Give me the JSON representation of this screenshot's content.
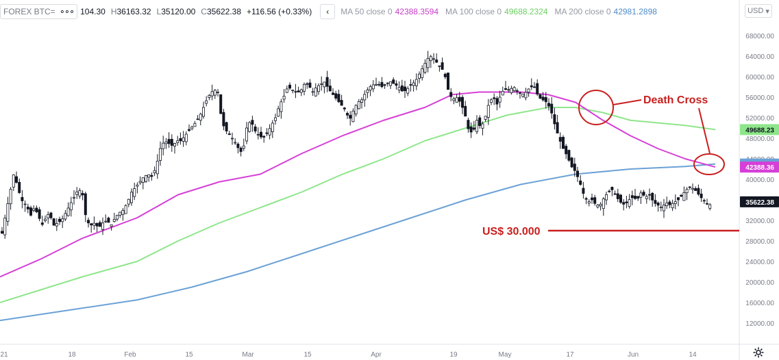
{
  "legend": {
    "symbol": "FOREX BTC=",
    "more_icon": "more-dots-icon",
    "open_label": "",
    "open": "104.30",
    "high_label": "H",
    "high": "36163.32",
    "low_label": "L",
    "low": "35120.00",
    "close_label": "C",
    "close": "35622.38",
    "change": "+116.56 (+0.33%)",
    "collapse_icon": "chevron-left-icon",
    "ma50_label": "MA 50 close 0",
    "ma50_value": "42388.3594",
    "ma100_label": "MA 100 close 0",
    "ma100_value": "49688.2324",
    "ma200_label": "MA 200 close 0",
    "ma200_value": "42981.2898"
  },
  "currency": "USD",
  "settings_icon": "gear-icon",
  "colors": {
    "up": "#ffffff",
    "down": "#131722",
    "ma50": "#d63fd8",
    "ma100": "#8ee68a",
    "ma200": "#6aa1d6",
    "annotation": "#c91e1e",
    "axis_text": "#787b86"
  },
  "chart_data": {
    "type": "candlestick",
    "y_axis": {
      "min": 8000,
      "max": 70000,
      "ticks": [
        "68000.00",
        "64000.00",
        "60000.00",
        "56000.00",
        "52000.00",
        "48000.00",
        "44000.00",
        "40000.00",
        "36000.00",
        "32000.00",
        "28000.00",
        "24000.00",
        "20000.00",
        "16000.00",
        "12000.00"
      ],
      "tick_values": [
        68000,
        64000,
        60000,
        56000,
        52000,
        48000,
        44000,
        40000,
        36000,
        32000,
        28000,
        24000,
        20000,
        16000,
        12000
      ]
    },
    "x_axis": {
      "labels": [
        "21",
        "18",
        "Feb",
        "15",
        "Mar",
        "15",
        "Apr",
        "19",
        "May",
        "17",
        "Jun",
        "14"
      ]
    },
    "price_labels": [
      {
        "text": "49688.23",
        "value": 49688.23,
        "series": "ma100"
      },
      {
        "text": "42981.29",
        "value": 42981.29,
        "series": "ma200"
      },
      {
        "text": "42388.36",
        "value": 42388.36,
        "series": "ma50"
      },
      {
        "text": "35622.38",
        "value": 35622.38,
        "series": "price"
      }
    ],
    "price_anchors": [
      [
        0,
        30000
      ],
      [
        5,
        29500
      ],
      [
        10,
        33000
      ],
      [
        16,
        37000
      ],
      [
        22,
        41000
      ],
      [
        27,
        39000
      ],
      [
        33,
        36000
      ],
      [
        40,
        35000
      ],
      [
        47,
        33000
      ],
      [
        52,
        34500
      ],
      [
        58,
        33000
      ],
      [
        63,
        31000
      ],
      [
        69,
        32500
      ],
      [
        74,
        33500
      ],
      [
        80,
        31000
      ],
      [
        86,
        31500
      ],
      [
        92,
        32000
      ],
      [
        98,
        33500
      ],
      [
        104,
        35000
      ],
      [
        110,
        36500
      ],
      [
        116,
        38000
      ],
      [
        122,
        37500
      ],
      [
        128,
        32000
      ],
      [
        134,
        31000
      ],
      [
        140,
        31500
      ],
      [
        146,
        30500
      ],
      [
        152,
        31500
      ],
      [
        158,
        32000
      ],
      [
        164,
        31000
      ],
      [
        170,
        32500
      ],
      [
        176,
        33500
      ],
      [
        182,
        34000
      ],
      [
        188,
        35500
      ],
      [
        194,
        37500
      ],
      [
        200,
        38500
      ],
      [
        206,
        39500
      ],
      [
        212,
        40500
      ],
      [
        218,
        41000
      ],
      [
        224,
        40500
      ],
      [
        230,
        42500
      ],
      [
        236,
        46000
      ],
      [
        242,
        47500
      ],
      [
        248,
        47000
      ],
      [
        254,
        46500
      ],
      [
        260,
        47500
      ],
      [
        266,
        47500
      ],
      [
        272,
        48500
      ],
      [
        278,
        49500
      ],
      [
        284,
        50500
      ],
      [
        290,
        51500
      ],
      [
        296,
        53000
      ],
      [
        302,
        55000
      ],
      [
        308,
        56500
      ],
      [
        314,
        57500
      ],
      [
        320,
        57000
      ],
      [
        326,
        51000
      ],
      [
        332,
        49500
      ],
      [
        338,
        48500
      ],
      [
        344,
        47500
      ],
      [
        350,
        46000
      ],
      [
        356,
        45000
      ],
      [
        362,
        50000
      ],
      [
        368,
        51500
      ],
      [
        374,
        49500
      ],
      [
        380,
        48500
      ],
      [
        386,
        48000
      ],
      [
        392,
        49000
      ],
      [
        398,
        50500
      ],
      [
        404,
        52000
      ],
      [
        410,
        54500
      ],
      [
        416,
        56000
      ],
      [
        422,
        58000
      ],
      [
        428,
        57500
      ],
      [
        434,
        57000
      ],
      [
        440,
        57000
      ],
      [
        446,
        58500
      ],
      [
        452,
        58500
      ],
      [
        458,
        57000
      ],
      [
        464,
        58000
      ],
      [
        470,
        58500
      ],
      [
        476,
        59000
      ],
      [
        482,
        57500
      ],
      [
        488,
        56500
      ],
      [
        494,
        55500
      ],
      [
        500,
        54500
      ],
      [
        506,
        53500
      ],
      [
        512,
        51500
      ],
      [
        518,
        53500
      ],
      [
        524,
        55000
      ],
      [
        530,
        55500
      ],
      [
        536,
        57000
      ],
      [
        542,
        58000
      ],
      [
        548,
        58500
      ],
      [
        554,
        58500
      ],
      [
        560,
        58000
      ],
      [
        566,
        58500
      ],
      [
        572,
        59000
      ],
      [
        578,
        58500
      ],
      [
        584,
        58000
      ],
      [
        590,
        57000
      ],
      [
        596,
        57500
      ],
      [
        602,
        58500
      ],
      [
        608,
        59000
      ],
      [
        614,
        60500
      ],
      [
        620,
        62000
      ],
      [
        626,
        63500
      ],
      [
        632,
        64000
      ],
      [
        638,
        63000
      ],
      [
        644,
        62000
      ],
      [
        650,
        61000
      ],
      [
        656,
        57500
      ],
      [
        662,
        55500
      ],
      [
        668,
        56000
      ],
      [
        674,
        55000
      ],
      [
        680,
        53000
      ],
      [
        686,
        49500
      ],
      [
        692,
        49000
      ],
      [
        698,
        51500
      ],
      [
        704,
        50000
      ],
      [
        710,
        52000
      ],
      [
        716,
        55000
      ],
      [
        722,
        56000
      ],
      [
        728,
        54500
      ],
      [
        734,
        57000
      ],
      [
        740,
        57500
      ],
      [
        746,
        57500
      ],
      [
        752,
        58000
      ],
      [
        758,
        57000
      ],
      [
        764,
        56500
      ],
      [
        770,
        57000
      ],
      [
        776,
        58000
      ],
      [
        782,
        58000
      ],
      [
        788,
        56000
      ],
      [
        794,
        55500
      ],
      [
        800,
        55000
      ],
      [
        806,
        53500
      ],
      [
        812,
        50500
      ],
      [
        818,
        48000
      ],
      [
        824,
        46000
      ],
      [
        830,
        44500
      ],
      [
        836,
        42500
      ],
      [
        842,
        41500
      ],
      [
        848,
        39500
      ],
      [
        854,
        37000
      ],
      [
        860,
        35500
      ],
      [
        866,
        36000
      ],
      [
        872,
        35000
      ],
      [
        878,
        35000
      ],
      [
        884,
        36500
      ],
      [
        890,
        37500
      ],
      [
        896,
        38000
      ],
      [
        902,
        36500
      ],
      [
        908,
        35500
      ],
      [
        914,
        35000
      ],
      [
        920,
        36000
      ],
      [
        926,
        36500
      ],
      [
        932,
        36000
      ],
      [
        938,
        37500
      ],
      [
        944,
        36500
      ],
      [
        950,
        37000
      ],
      [
        956,
        35500
      ],
      [
        962,
        35000
      ],
      [
        968,
        34500
      ],
      [
        974,
        35500
      ],
      [
        980,
        35000
      ],
      [
        986,
        35500
      ],
      [
        992,
        36000
      ],
      [
        998,
        37000
      ],
      [
        1004,
        38000
      ],
      [
        1010,
        38500
      ],
      [
        1016,
        38000
      ],
      [
        1022,
        37000
      ],
      [
        1028,
        36000
      ],
      [
        1034,
        35200
      ],
      [
        1040,
        35000
      ],
      [
        1044,
        35622
      ]
    ],
    "ma50_points": [
      [
        0,
        21000
      ],
      [
        60,
        24500
      ],
      [
        120,
        28500
      ],
      [
        200,
        32500
      ],
      [
        260,
        37000
      ],
      [
        320,
        39500
      ],
      [
        380,
        41000
      ],
      [
        440,
        45000
      ],
      [
        500,
        48500
      ],
      [
        560,
        51500
      ],
      [
        620,
        54000
      ],
      [
        660,
        56500
      ],
      [
        700,
        57000
      ],
      [
        760,
        57000
      ],
      [
        800,
        56500
      ],
      [
        840,
        55000
      ],
      [
        880,
        51500
      ],
      [
        920,
        48500
      ],
      [
        960,
        46000
      ],
      [
        1000,
        44000
      ],
      [
        1044,
        42388
      ]
    ],
    "ma100_points": [
      [
        0,
        16000
      ],
      [
        60,
        18500
      ],
      [
        120,
        21000
      ],
      [
        200,
        24000
      ],
      [
        260,
        28000
      ],
      [
        320,
        31500
      ],
      [
        380,
        34500
      ],
      [
        440,
        37500
      ],
      [
        500,
        41000
      ],
      [
        560,
        44000
      ],
      [
        620,
        47500
      ],
      [
        680,
        50000
      ],
      [
        740,
        52500
      ],
      [
        800,
        54000
      ],
      [
        840,
        54000
      ],
      [
        880,
        53000
      ],
      [
        920,
        51500
      ],
      [
        960,
        51000
      ],
      [
        1000,
        50500
      ],
      [
        1044,
        49688
      ]
    ],
    "ma200_points": [
      [
        0,
        12500
      ],
      [
        100,
        14500
      ],
      [
        200,
        16500
      ],
      [
        280,
        19000
      ],
      [
        360,
        22000
      ],
      [
        440,
        25500
      ],
      [
        520,
        29000
      ],
      [
        600,
        32500
      ],
      [
        680,
        36000
      ],
      [
        760,
        39000
      ],
      [
        840,
        41000
      ],
      [
        920,
        42000
      ],
      [
        1000,
        42500
      ],
      [
        1044,
        42981
      ]
    ],
    "annotations": [
      {
        "text": "Death Cross",
        "value": 55000
      },
      {
        "text": "US$ 30.000",
        "value": 30000
      }
    ]
  }
}
